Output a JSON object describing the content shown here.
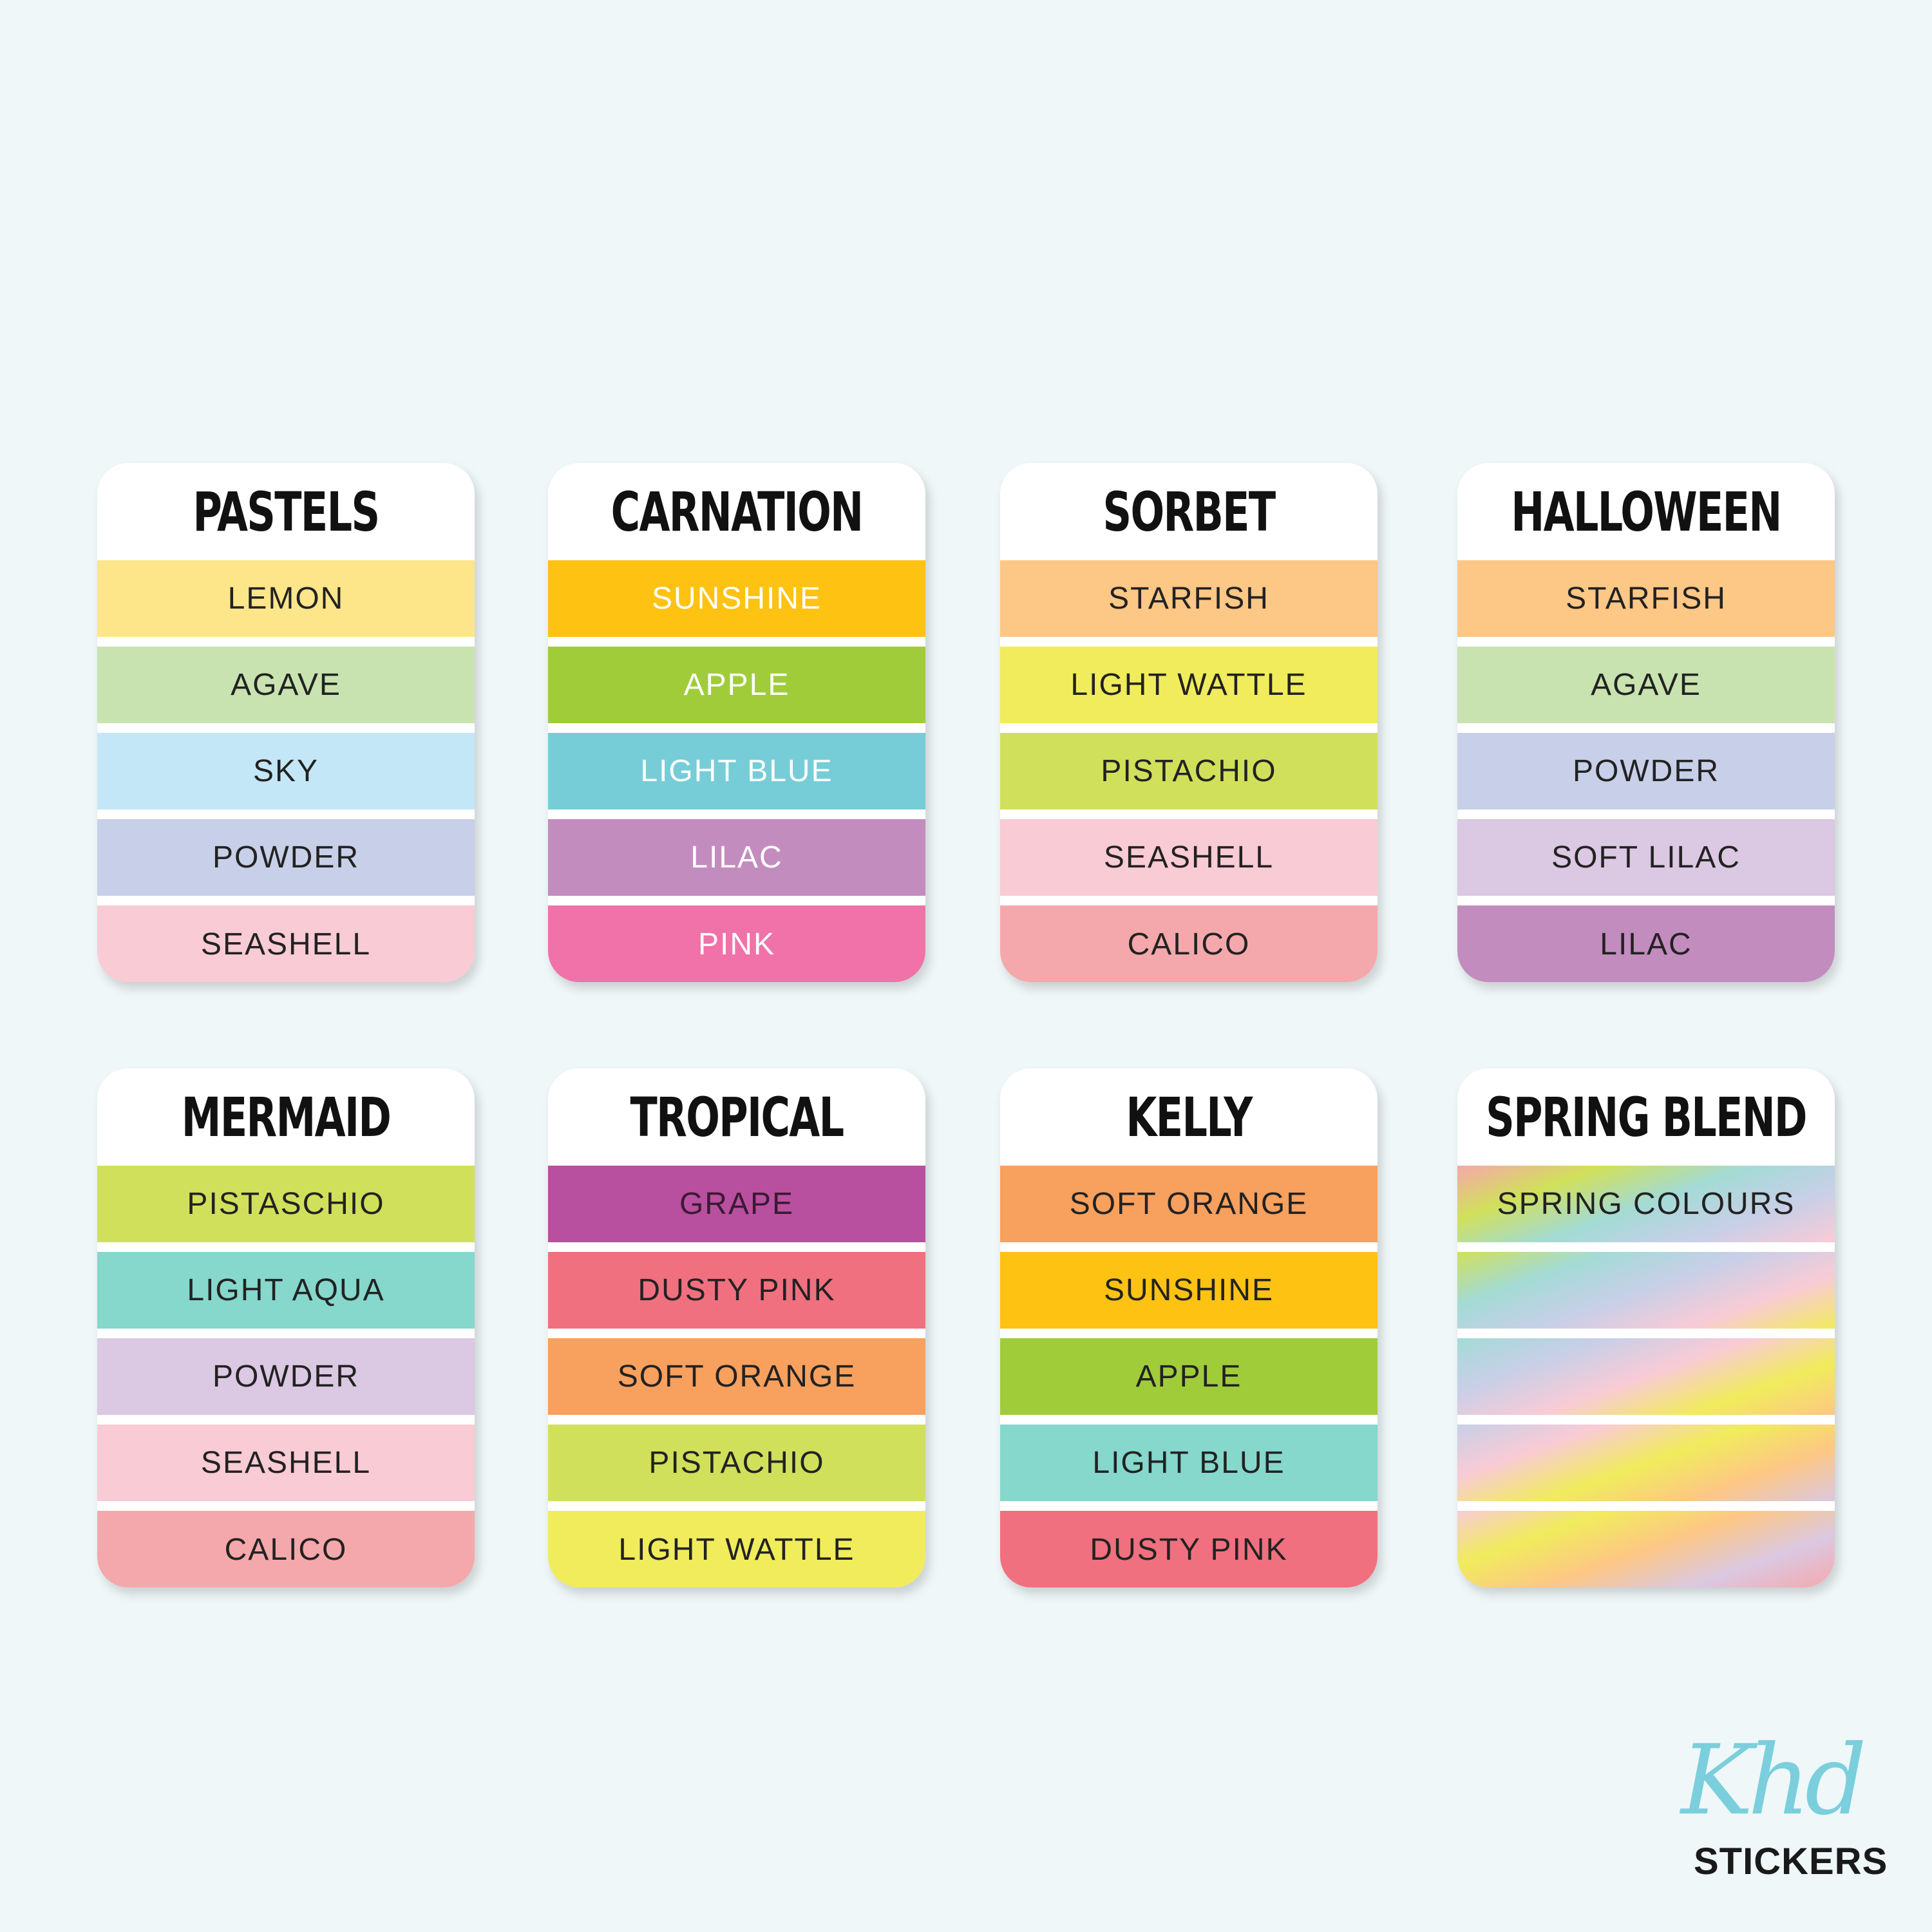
{
  "cards": [
    {
      "title": "PASTELS",
      "stripes": [
        {
          "label": "LEMON",
          "color": "#fde68a",
          "text": "#222"
        },
        {
          "label": "AGAVE",
          "color": "#c8e3b0",
          "text": "#222"
        },
        {
          "label": "SKY",
          "color": "#c3e7f7",
          "text": "#222"
        },
        {
          "label": "POWDER",
          "color": "#c8cfe8",
          "text": "#222"
        },
        {
          "label": "SEASHELL",
          "color": "#f9cbd5",
          "text": "#222"
        }
      ]
    },
    {
      "title": "CARNATION",
      "stripes": [
        {
          "label": "SUNSHINE",
          "color": "#fec213",
          "text": "#ffffff"
        },
        {
          "label": "APPLE",
          "color": "#a0cc3a",
          "text": "#ffffff"
        },
        {
          "label": "LIGHT BLUE",
          "color": "#76cdd8",
          "text": "#ffffff"
        },
        {
          "label": "LILAC",
          "color": "#c38cbe",
          "text": "#ffffff"
        },
        {
          "label": "PINK",
          "color": "#f072a8",
          "text": "#ffffff"
        }
      ]
    },
    {
      "title": "SORBET",
      "stripes": [
        {
          "label": "STARFISH",
          "color": "#fdc785",
          "text": "#222"
        },
        {
          "label": "LIGHT WATTLE",
          "color": "#f0ec5c",
          "text": "#222"
        },
        {
          "label": "PISTACHIO",
          "color": "#d1e05a",
          "text": "#222"
        },
        {
          "label": "SEASHELL",
          "color": "#f9cbd5",
          "text": "#222"
        },
        {
          "label": "CALICO",
          "color": "#f5a8ab",
          "text": "#222"
        }
      ]
    },
    {
      "title": "HALLOWEEN",
      "stripes": [
        {
          "label": "STARFISH",
          "color": "#fdc785",
          "text": "#222"
        },
        {
          "label": "AGAVE",
          "color": "#c8e3b0",
          "text": "#222"
        },
        {
          "label": "POWDER",
          "color": "#c8cfe8",
          "text": "#222"
        },
        {
          "label": "SOFT LILAC",
          "color": "#dbc8e2",
          "text": "#222"
        },
        {
          "label": "LILAC",
          "color": "#c38cbe",
          "text": "#222"
        }
      ]
    },
    {
      "title": "MERMAID",
      "stripes": [
        {
          "label": "PISTASCHIO",
          "color": "#d1e05a",
          "text": "#222"
        },
        {
          "label": "LIGHT AQUA",
          "color": "#86d7cc",
          "text": "#222"
        },
        {
          "label": "POWDER",
          "color": "#dbc8e2",
          "text": "#222"
        },
        {
          "label": "SEASHELL",
          "color": "#f9cbd5",
          "text": "#222"
        },
        {
          "label": "CALICO",
          "color": "#f5a8ab",
          "text": "#222"
        }
      ]
    },
    {
      "title": "TROPICAL",
      "stripes": [
        {
          "label": "GRAPE",
          "color": "#b94f9f",
          "text": "#3a1a33"
        },
        {
          "label": "DUSTY PINK",
          "color": "#f0707f",
          "text": "#222"
        },
        {
          "label": "SOFT ORANGE",
          "color": "#f8a05d",
          "text": "#222"
        },
        {
          "label": "PISTACHIO",
          "color": "#d1e05a",
          "text": "#222"
        },
        {
          "label": "LIGHT WATTLE",
          "color": "#f0ec5c",
          "text": "#222"
        }
      ]
    },
    {
      "title": "KELLY",
      "stripes": [
        {
          "label": "SOFT ORANGE",
          "color": "#f8a05d",
          "text": "#222"
        },
        {
          "label": "SUNSHINE",
          "color": "#fec213",
          "text": "#222"
        },
        {
          "label": "APPLE",
          "color": "#a0cc3a",
          "text": "#222"
        },
        {
          "label": "LIGHT BLUE",
          "color": "#86d7cc",
          "text": "#222"
        },
        {
          "label": "DUSTY PINK",
          "color": "#f0707f",
          "text": "#222"
        }
      ]
    },
    {
      "title": "SPRING BLEND",
      "gradient": true,
      "stripes": [
        {
          "label": "SPRING COLOURS",
          "text": "#222"
        },
        {
          "label": ""
        },
        {
          "label": ""
        },
        {
          "label": ""
        },
        {
          "label": ""
        }
      ]
    }
  ],
  "gradient_colors": [
    "#f5a8ab",
    "#d1e05a",
    "#a3dbd5",
    "#c8cfe8",
    "#f9cbd5",
    "#f0ec5c",
    "#fdc785",
    "#dbc8e2"
  ],
  "logo": {
    "script": "Khd",
    "text": "STICKERS",
    "color": "#7bcfdc"
  }
}
